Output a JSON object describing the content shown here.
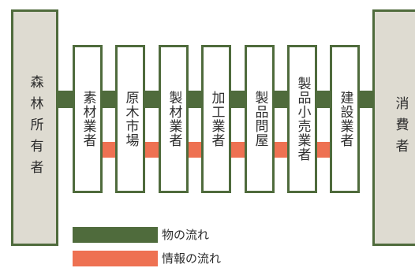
{
  "flow_chain": {
    "left_end": "森林所有者",
    "intermediaries": [
      "素材業者",
      "原木市場",
      "製材業者",
      "加工業者",
      "製品問屋",
      "製品小売業者",
      "建設業者"
    ],
    "right_end": "消費者"
  },
  "legend": {
    "goods_flow_label": "物の流れ",
    "info_flow_label": "情報の流れ"
  },
  "colors": {
    "goods_flow": "#4f6b3c",
    "info_flow": "#ee7152",
    "end_box_fill": "#dedbd1",
    "box_border": "#4f6b3c"
  }
}
